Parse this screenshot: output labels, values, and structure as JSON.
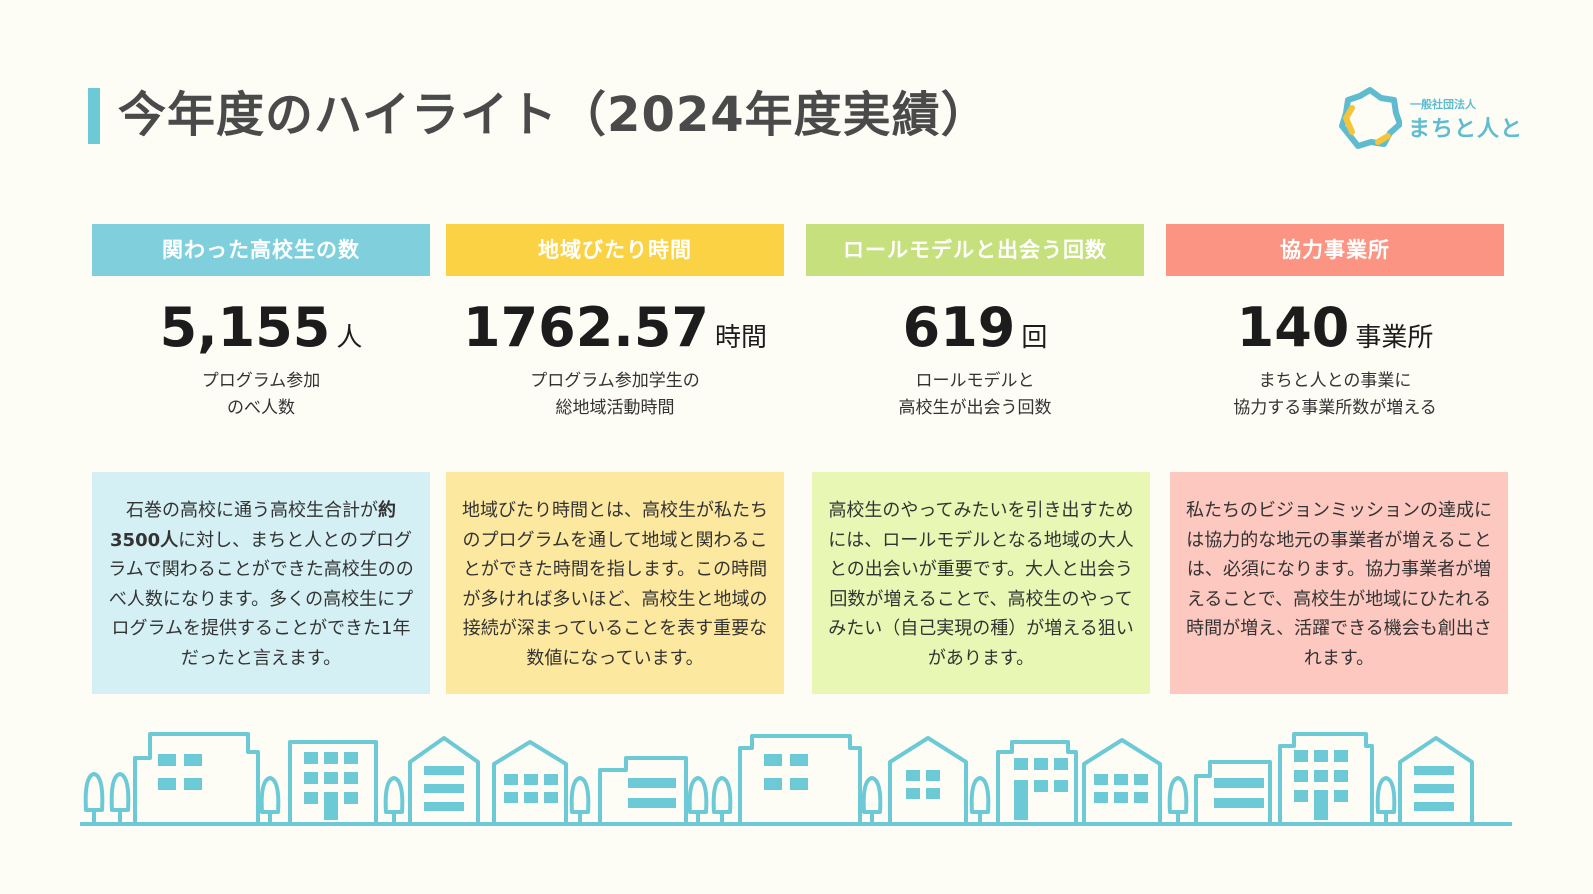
{
  "title": "今年度のハイライト（2024年度実績）",
  "logo": {
    "sub": "一般社団法人",
    "main": "まちと人と"
  },
  "colors": {
    "accent": "#6cc9d6",
    "blue": "#7fd0dc",
    "yellow": "#fad243",
    "green": "#c5e07c",
    "red": "#fb9483"
  },
  "cards": [
    {
      "header": "関わった高校生の数",
      "value": "5,155",
      "unit": "人",
      "subtitle": "プログラム参加\nのべ人数",
      "description_strong": "約3500人",
      "description_pre": "石巻の高校に通う高校生合計が",
      "description_post": "に対し、まちと人とのプログラムで関わることができた高校生ののべ人数になります。多くの高校生にプログラムを提供することができた1年だったと言えます。"
    },
    {
      "header": "地域びたり時間",
      "value": "1762.57",
      "unit": "時間",
      "subtitle": "プログラム参加学生の\n総地域活動時間",
      "description": "地域びたり時間とは、高校生が私たちのプログラムを通して地域と関わることができた時間を指します。この時間が多ければ多いほど、高校生と地域の接続が深まっていることを表す重要な数値になっています。"
    },
    {
      "header": "ロールモデルと出会う回数",
      "value": "619",
      "unit": "回",
      "subtitle": "ロールモデルと\n高校生が出会う回数",
      "description": "高校生のやってみたいを引き出すためには、ロールモデルとなる地域の大人との出会いが重要です。大人と出会う回数が増えることで、高校生のやってみたい（自己実現の種）が増える狙いがあります。"
    },
    {
      "header": "協力事業所",
      "value": "140",
      "unit": "事業所",
      "subtitle": "まちと人との事業に\n協力する事業所数が増える",
      "description": "私たちのビジョンミッションの達成には協力的な地元の事業者が増えることは、必須になります。協力事業者が増えることで、高校生が地域にひたれる時間が増え、活躍できる機会も創出されます。"
    }
  ]
}
